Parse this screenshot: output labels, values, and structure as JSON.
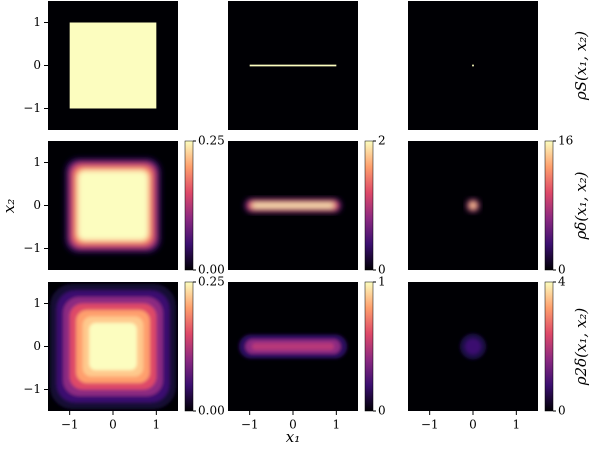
{
  "figure": {
    "xlabel": "x₁",
    "ylabel": "x₂",
    "row_labels": [
      "ρS(x₁, x₂)",
      "ρδ(x₁, x₂)",
      "ρ2δ(x₁, x₂)"
    ]
  },
  "chart_data": [
    {
      "type": "heatmap",
      "xlim": [
        -1.5,
        1.5
      ],
      "ylim": [
        -1.5,
        1.5
      ],
      "yticks": [
        {
          "value": -1,
          "label": "−1"
        },
        0,
        1
      ]
    },
    {
      "type": "heatmap",
      "xlim": [
        -1.5,
        1.5
      ],
      "ylim": [
        -1.5,
        1.5
      ]
    },
    {
      "type": "heatmap",
      "xlim": [
        -1.5,
        1.5
      ],
      "ylim": [
        -1.5,
        1.5
      ]
    },
    {
      "type": "heatmap",
      "xlim": [
        -1.5,
        1.5
      ],
      "ylim": [
        -1.5,
        1.5
      ],
      "yticks": [
        {
          "value": -1,
          "label": "−1"
        },
        0,
        1
      ],
      "colorbar": {
        "lim": [
          0,
          0.25
        ],
        "ticks": [
          {
            "value": 0,
            "label": "0.00"
          },
          0.25
        ]
      }
    },
    {
      "type": "heatmap",
      "xlim": [
        -1.5,
        1.5
      ],
      "ylim": [
        -1.5,
        1.5
      ],
      "colorbar": {
        "lim": [
          0,
          2
        ],
        "ticks": [
          0,
          2
        ]
      }
    },
    {
      "type": "heatmap",
      "xlim": [
        -1.5,
        1.5
      ],
      "ylim": [
        -1.5,
        1.5
      ],
      "colorbar": {
        "lim": [
          0,
          16
        ],
        "ticks": [
          0,
          16
        ]
      }
    },
    {
      "type": "heatmap",
      "xlim": [
        -1.5,
        1.5
      ],
      "ylim": [
        -1.5,
        1.5
      ],
      "xticks": [
        {
          "value": -1,
          "label": "−1"
        },
        0,
        1
      ],
      "yticks": [
        {
          "value": -1,
          "label": "−1"
        },
        0,
        1
      ],
      "colorbar": {
        "lim": [
          0,
          0.25
        ],
        "ticks": [
          {
            "value": 0,
            "label": "0.00"
          },
          0.25
        ]
      }
    },
    {
      "type": "heatmap",
      "xlim": [
        -1.5,
        1.5
      ],
      "ylim": [
        -1.5,
        1.5
      ],
      "xticks": [
        {
          "value": -1,
          "label": "−1"
        },
        0,
        1
      ],
      "colorbar": {
        "lim": [
          0,
          1
        ],
        "ticks": [
          0,
          1
        ]
      }
    },
    {
      "type": "heatmap",
      "xlim": [
        -1.5,
        1.5
      ],
      "ylim": [
        -1.5,
        1.5
      ],
      "xticks": [
        {
          "value": -1,
          "label": "−1"
        },
        0,
        1
      ],
      "colorbar": {
        "lim": [
          0,
          4
        ],
        "ticks": [
          0,
          4
        ]
      }
    }
  ]
}
